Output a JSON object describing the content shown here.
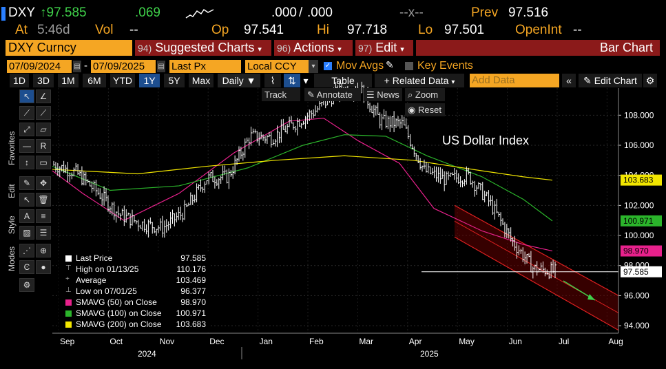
{
  "header": {
    "ticker": "DXY",
    "last_price": "↑97.585",
    "change": ".069",
    "field_1": ".000",
    "field_2": ".000",
    "dash_x": "--x--",
    "prev_label": "Prev",
    "prev_value": "97.516",
    "at_label": "At",
    "at_time": "5:46d",
    "vol_label": "Vol",
    "vol_value": "--",
    "op_label": "Op",
    "op_value": "97.541",
    "hi_label": "Hi",
    "hi_value": "97.718",
    "lo_label": "Lo",
    "lo_value": "97.501",
    "openint_label": "OpenInt",
    "openint_value": "--"
  },
  "toolbar": {
    "security": "DXY Curncy",
    "suggested_num": "94)",
    "suggested": "Suggested Charts",
    "actions_num": "96)",
    "actions": "Actions",
    "edit_num": "97)",
    "edit": "Edit",
    "chart_type": "Bar Chart"
  },
  "settings": {
    "start_date": "07/09/2024",
    "end_date": "07/09/2025",
    "field": "Last Px",
    "currency": "Local CCY",
    "mov_avgs": "Mov Avgs",
    "key_events": "Key Events",
    "add_data_placeholder": "Add Data",
    "edit_chart": "Edit Chart"
  },
  "periods": [
    "1D",
    "3D",
    "1M",
    "6M",
    "YTD",
    "1Y",
    "5Y",
    "Max"
  ],
  "selected_period": "1Y",
  "frequency": "Daily",
  "table_btn": "Table",
  "related_data": "+ Related Data",
  "chart_controls": {
    "track": "Track",
    "annotate": "Annotate",
    "news": "News",
    "zoom": "Zoom",
    "reset": "Reset"
  },
  "side_labels": {
    "favorites": "Favorites",
    "edit": "Edit",
    "style": "Style",
    "modes": "Modes"
  },
  "legend": [
    {
      "label": "Last Price",
      "value": "97.585",
      "color": "#ffffff"
    },
    {
      "label": "High on 01/13/25",
      "value": "110.176",
      "color": ""
    },
    {
      "label": "Average",
      "value": "103.469",
      "color": ""
    },
    {
      "label": "Low on 07/01/25",
      "value": "96.377",
      "color": ""
    },
    {
      "label": "SMAVG (50)  on Close",
      "value": "98.970",
      "color": "#e8218c"
    },
    {
      "label": "SMAVG (100)  on Close",
      "value": "100.971",
      "color": "#2bb52b"
    },
    {
      "label": "SMAVG (200)  on Close",
      "value": "103.683",
      "color": "#f2e600"
    }
  ],
  "chart_data": {
    "type": "line",
    "title": "US Dollar Index",
    "x_ticks": [
      "Sep",
      "Oct",
      "Nov",
      "Dec",
      "Jan",
      "Feb",
      "Mar",
      "Apr",
      "May",
      "Jun",
      "Jul",
      "Aug"
    ],
    "year_labels": [
      "2024",
      "2025"
    ],
    "y_ticks": [
      "108.000",
      "106.000",
      "104.000",
      "102.000",
      "100.000",
      "98.000",
      "96.000",
      "94.000"
    ],
    "ylim": [
      93.5,
      109.8
    ],
    "price_series": {
      "name": "Last Price",
      "x": [
        "Jul",
        "Aug",
        "Aug",
        "Sep",
        "Sep",
        "Oct",
        "Oct",
        "Nov",
        "Nov",
        "Dec",
        "Dec",
        "Jan",
        "Jan",
        "Feb",
        "Feb",
        "Mar",
        "Mar",
        "Apr",
        "Apr",
        "May",
        "May",
        "Jun",
        "Jun",
        "Jul"
      ],
      "values": [
        104.7,
        104.2,
        102.9,
        101.4,
        100.8,
        100.5,
        101.6,
        103.8,
        103.9,
        106.6,
        106.5,
        107.4,
        108.3,
        109.5,
        109.9,
        107.6,
        107.4,
        104.3,
        103.7,
        104.0,
        102.2,
        99.7,
        97.8,
        97.6
      ]
    },
    "sma_series": [
      {
        "name": "SMAVG (50)",
        "color": "#e8218c",
        "last": 98.97
      },
      {
        "name": "SMAVG (100)",
        "color": "#2bb52b",
        "last": 100.971
      },
      {
        "name": "SMAVG (200)",
        "color": "#f2e600",
        "last": 103.683
      }
    ],
    "last_price_line": 97.585,
    "flags": [
      {
        "label": "103.683",
        "color": "#f2e600"
      },
      {
        "label": "100.971",
        "color": "#2bb52b"
      },
      {
        "label": "98.970",
        "color": "#e8218c"
      },
      {
        "label": "97.585",
        "color": "#ffffff"
      }
    ]
  }
}
